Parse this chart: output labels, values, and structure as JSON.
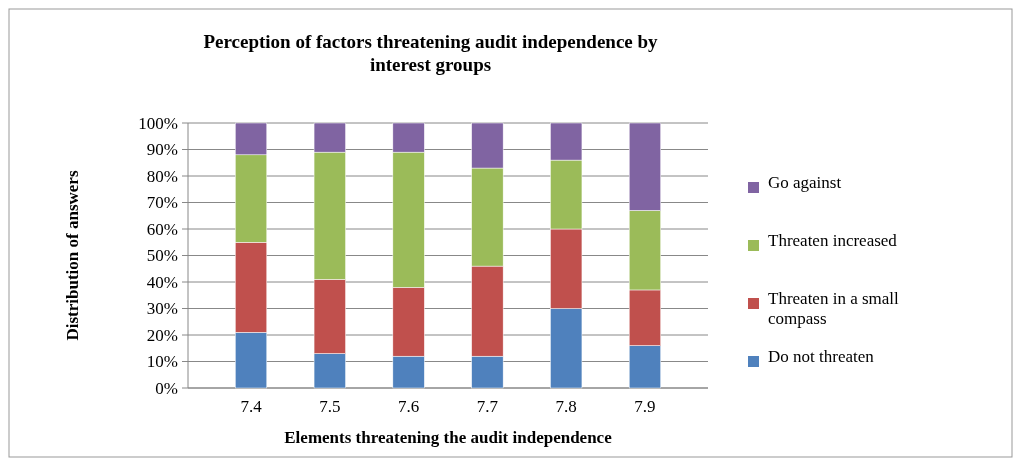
{
  "chart_data": {
    "type": "bar",
    "stacked": true,
    "title": "Perception of factors threatening audit independence by interest groups",
    "xlabel": "Elements threatening the audit independence",
    "ylabel": "Distribution of answers",
    "categories": [
      "7.4",
      "7.5",
      "7.6",
      "7.7",
      "7.8",
      "7.9"
    ],
    "series": [
      {
        "name": "Do not threaten",
        "color": "#4f81bd",
        "values": [
          21,
          13,
          12,
          12,
          30,
          16
        ]
      },
      {
        "name": "Threaten in a small compass",
        "color": "#c0504d",
        "values": [
          34,
          28,
          26,
          34,
          30,
          21
        ]
      },
      {
        "name": "Threaten increased",
        "color": "#9bbb59",
        "values": [
          33,
          48,
          51,
          37,
          26,
          30
        ]
      },
      {
        "name": "Go against",
        "color": "#8064a2",
        "values": [
          12,
          11,
          11,
          17,
          14,
          33
        ]
      }
    ],
    "ylim": [
      0,
      100
    ],
    "yticks": [
      {
        "value": 0,
        "label": "0%"
      },
      {
        "value": 10,
        "label": "10%"
      },
      {
        "value": 20,
        "label": "20%"
      },
      {
        "value": 30,
        "label": "30%"
      },
      {
        "value": 40,
        "label": "40%"
      },
      {
        "value": 50,
        "label": "50%"
      },
      {
        "value": 60,
        "label": "60%"
      },
      {
        "value": 70,
        "label": "70%"
      },
      {
        "value": 80,
        "label": "80%"
      },
      {
        "value": 90,
        "label": "90%"
      },
      {
        "value": 100,
        "label": "100%"
      }
    ],
    "grid": "y",
    "legend": "right"
  }
}
